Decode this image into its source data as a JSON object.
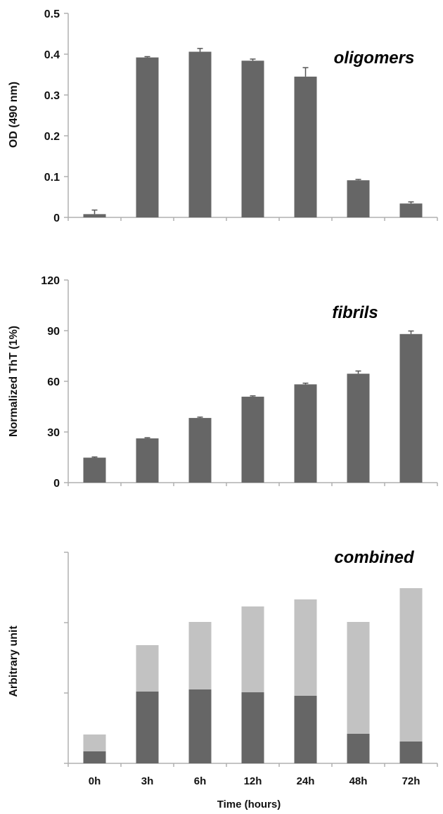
{
  "chart_data": [
    {
      "type": "bar",
      "title": "oligomers",
      "ylabel": "OD (490 nm)",
      "categories": [
        "0h",
        "3h",
        "6h",
        "12h",
        "24h",
        "48h",
        "72h"
      ],
      "values": [
        0.008,
        0.392,
        0.406,
        0.384,
        0.345,
        0.091,
        0.034
      ],
      "errors": [
        0.01,
        0.002,
        0.008,
        0.004,
        0.022,
        0.002,
        0.004
      ],
      "ylim": [
        0,
        0.5
      ],
      "yticks": [
        "0",
        "0.1",
        "0.2",
        "0.3",
        "0.4",
        "0.5"
      ],
      "color": "#666666"
    },
    {
      "type": "bar",
      "title": "fibrils",
      "ylabel": "Normalized ThT (1%)",
      "categories": [
        "0h",
        "3h",
        "6h",
        "12h",
        "24h",
        "48h",
        "72h"
      ],
      "values": [
        14.8,
        26.2,
        38.3,
        50.9,
        58.2,
        64.5,
        88.0
      ],
      "errors": [
        0.4,
        0.4,
        0.5,
        0.5,
        0.7,
        1.6,
        1.8
      ],
      "ylim": [
        0,
        120
      ],
      "yticks": [
        "0",
        "30",
        "60",
        "90",
        "120"
      ],
      "color": "#666666"
    },
    {
      "type": "bar",
      "stacked": true,
      "title": "combined",
      "ylabel": "Arbitrary unit",
      "xlabel": "Time (hours)",
      "categories": [
        "0h",
        "3h",
        "6h",
        "12h",
        "24h",
        "48h",
        "72h"
      ],
      "ylim": [
        0,
        3
      ],
      "ytick_values": [
        0,
        1,
        2,
        3
      ],
      "series": [
        {
          "values": [
            0.17,
            1.02,
            1.05,
            1.01,
            0.96,
            0.42,
            0.31
          ],
          "color": "#666666"
        },
        {
          "values": [
            0.24,
            0.66,
            0.96,
            1.22,
            1.37,
            1.59,
            2.18
          ],
          "color": "#c2c2c2"
        }
      ]
    }
  ]
}
